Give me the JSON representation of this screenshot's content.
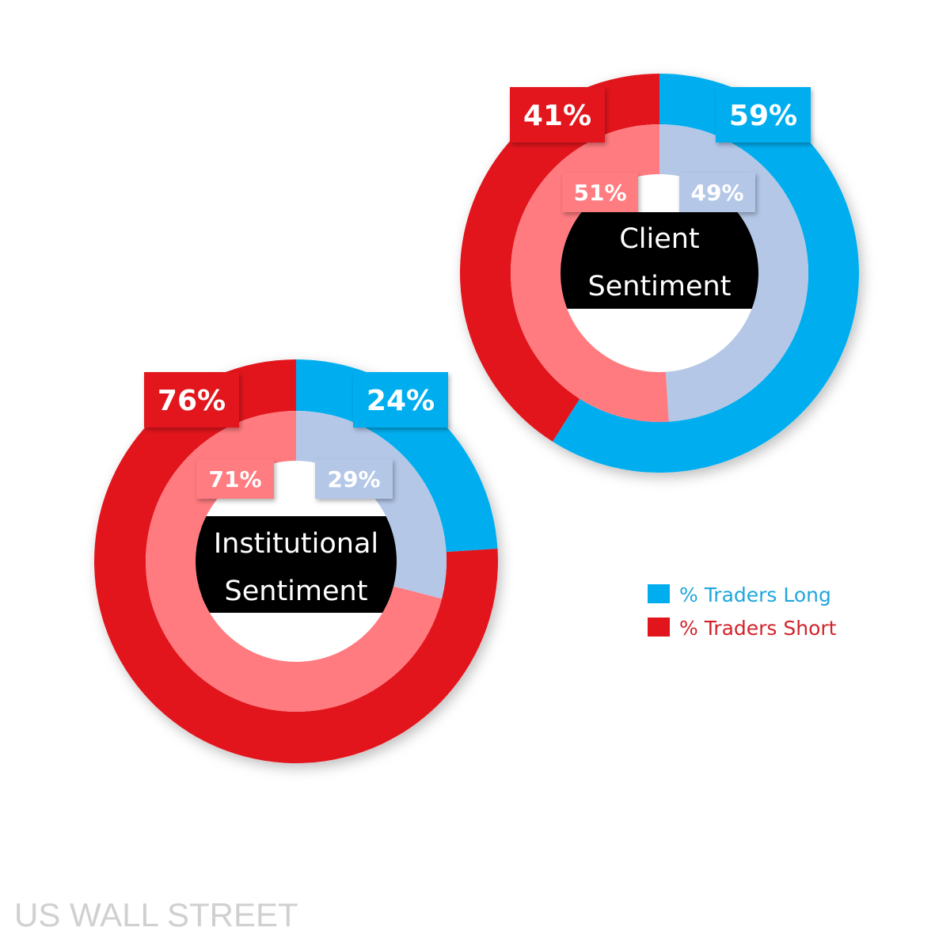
{
  "chart_data": [
    {
      "type": "pie",
      "subtype": "double-donut",
      "title": "Client Sentiment",
      "title_lines": [
        "Client",
        "Sentiment"
      ],
      "outer": {
        "labels": [
          "% Traders Long",
          "% Traders Short"
        ],
        "values": [
          59,
          41
        ],
        "value_labels": [
          "59%",
          "41%"
        ]
      },
      "inner": {
        "labels": [
          "% Traders Long",
          "% Traders Short"
        ],
        "values": [
          49,
          51
        ],
        "value_labels": [
          "49%",
          "51%"
        ]
      }
    },
    {
      "type": "pie",
      "subtype": "double-donut",
      "title": "Institutional Sentiment",
      "title_lines": [
        "Institutional",
        "Sentiment"
      ],
      "outer": {
        "labels": [
          "% Traders Long",
          "% Traders Short"
        ],
        "values": [
          24,
          76
        ],
        "value_labels": [
          "24%",
          "76%"
        ]
      },
      "inner": {
        "labels": [
          "% Traders Long",
          "% Traders Short"
        ],
        "values": [
          29,
          71
        ],
        "value_labels": [
          "29%",
          "71%"
        ]
      }
    }
  ],
  "legend": {
    "placement": "right",
    "items": [
      {
        "label": "% Traders Long",
        "color": "#00AEEF"
      },
      {
        "label": "% Traders Short",
        "color": "#E2151C"
      }
    ]
  },
  "colors": {
    "long_outer": "#00AEEF",
    "short_outer": "#E2151C",
    "long_inner": "#B4C7E7",
    "short_inner": "#FF7B80"
  },
  "watermark": "US WALL STREET"
}
